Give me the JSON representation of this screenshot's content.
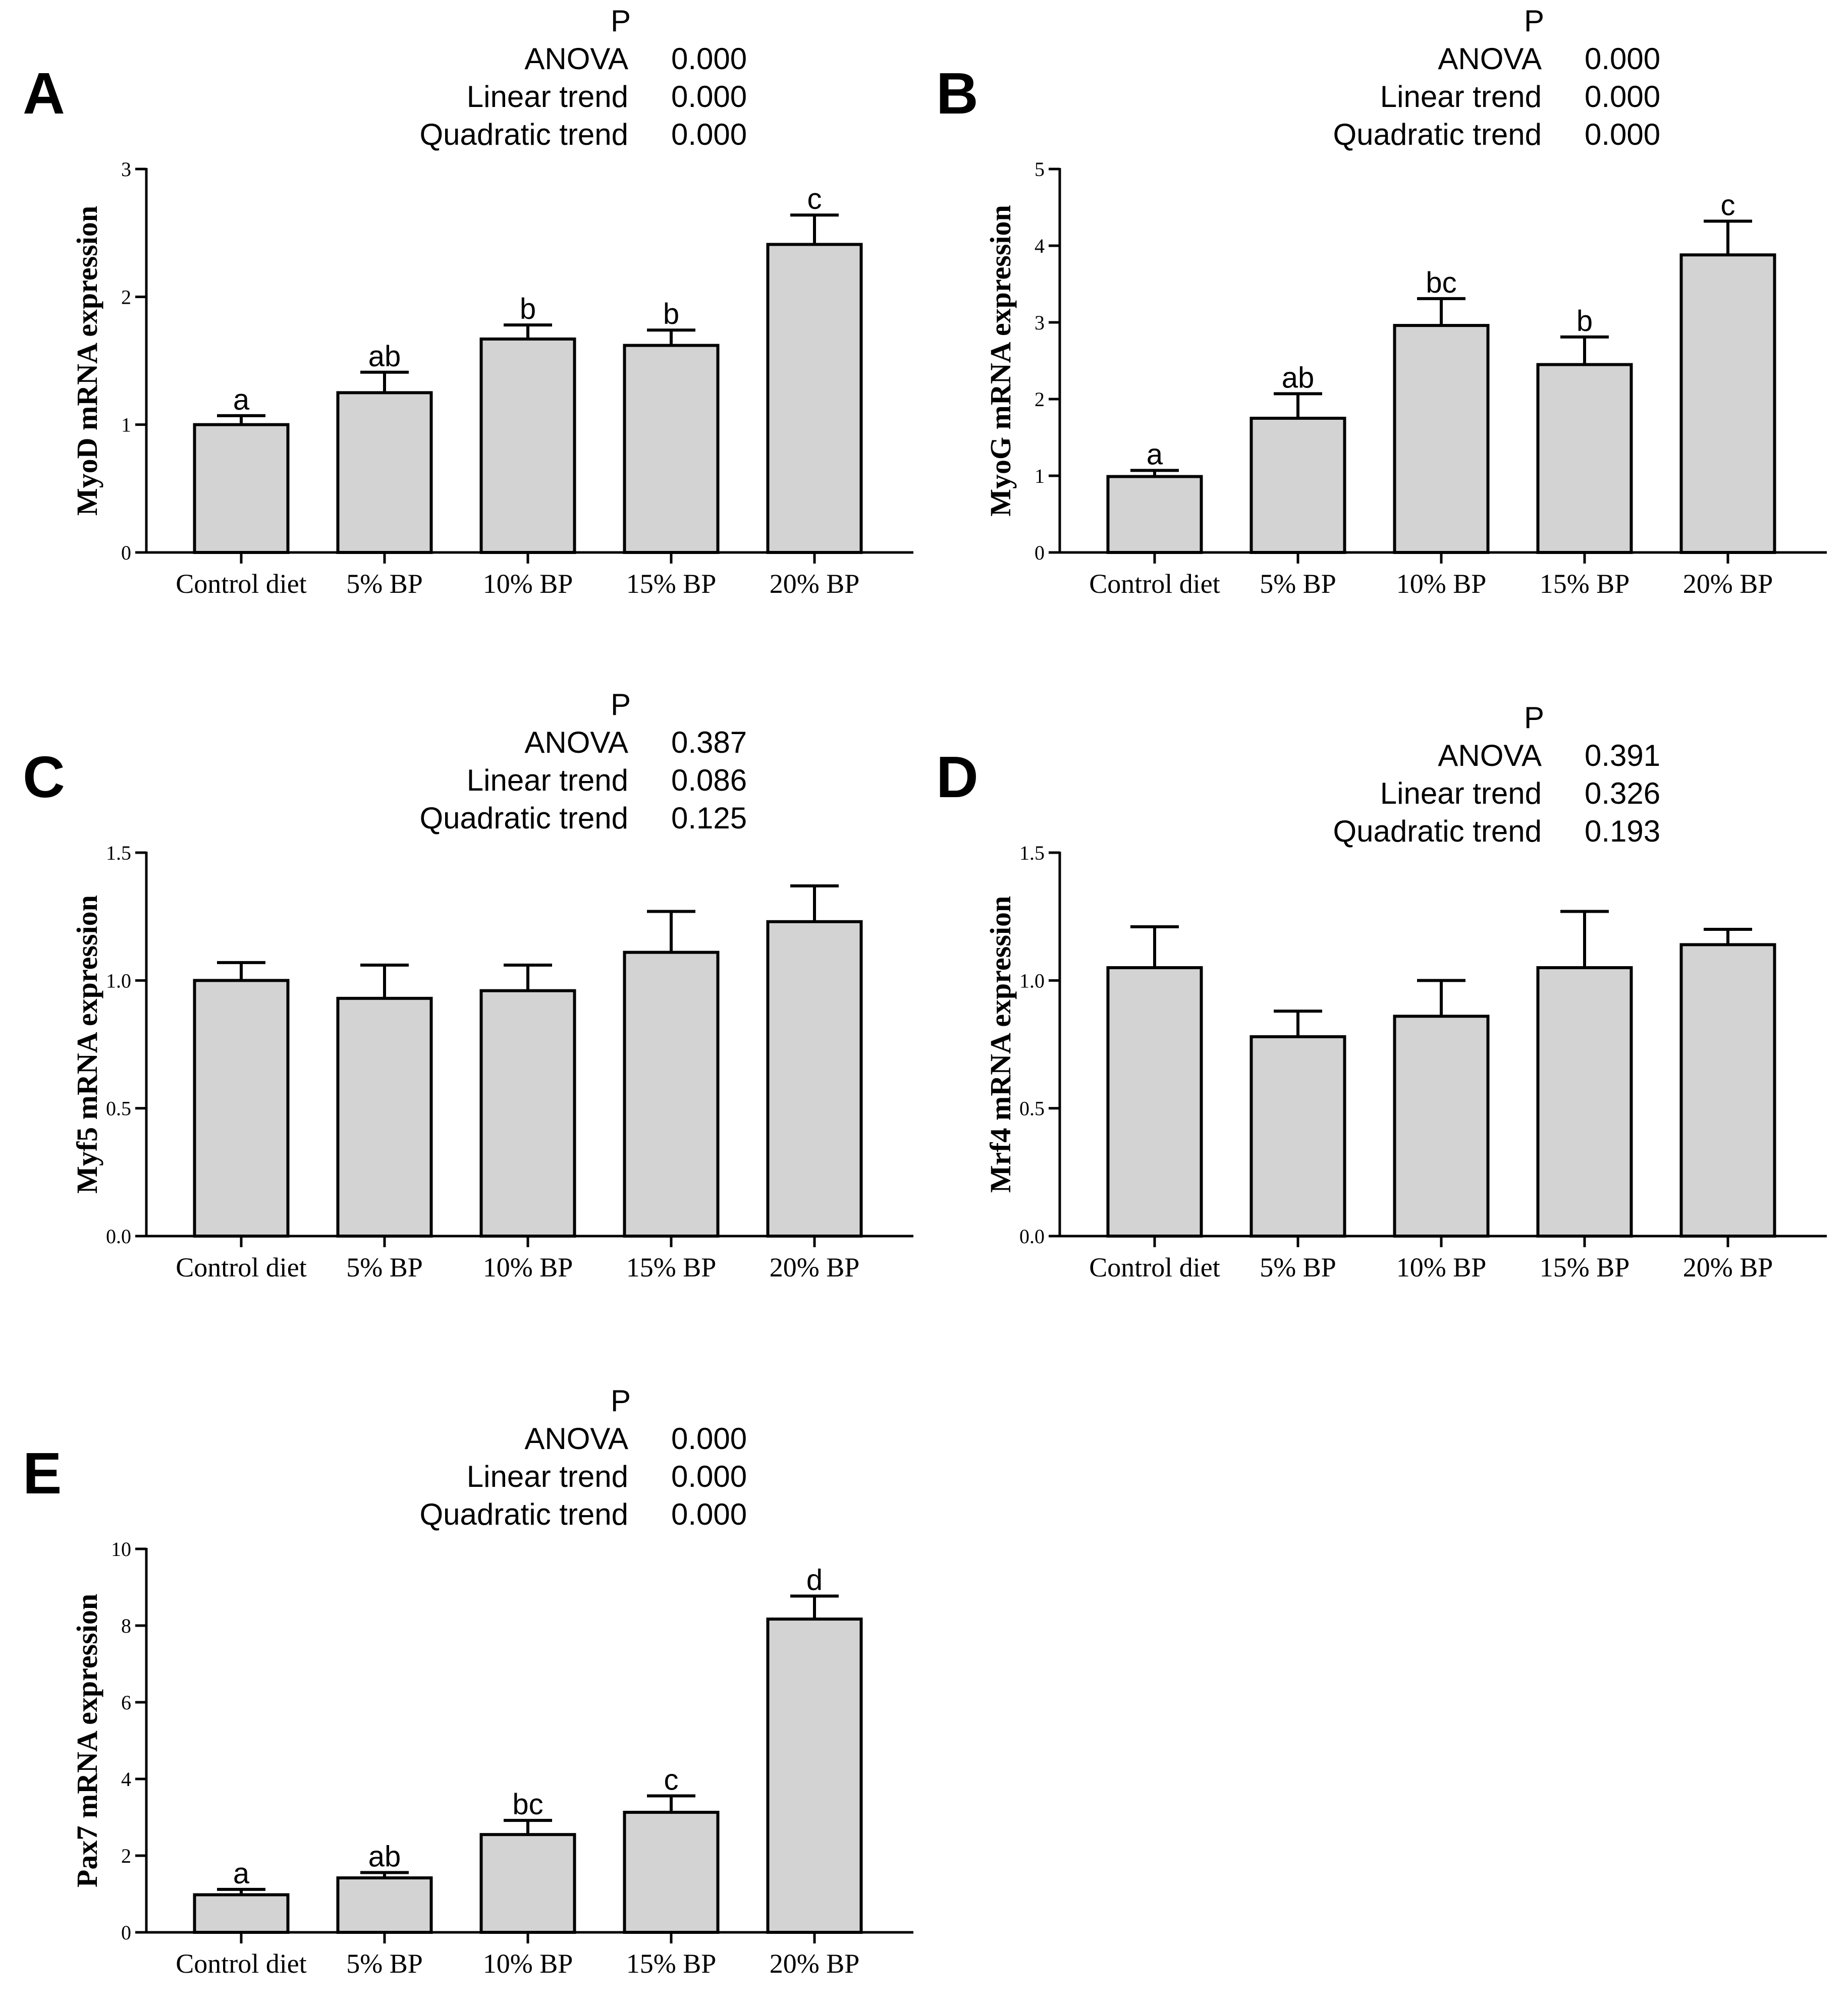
{
  "chart_data": [
    {
      "type": "bar",
      "panel": "A",
      "ylabel": "MyoD mRNA expression",
      "categories": [
        "Control diet",
        "5% BP",
        "10% BP",
        "15% BP",
        "20% BP"
      ],
      "values": [
        1.0,
        1.25,
        1.67,
        1.62,
        2.41
      ],
      "errors": [
        0.07,
        0.16,
        0.11,
        0.12,
        0.23
      ],
      "letters": [
        "a",
        "ab",
        "b",
        "b",
        "c"
      ],
      "ylim": [
        0,
        3
      ],
      "yticks": [
        "0",
        "1",
        "2",
        "3"
      ],
      "stats": {
        "header": "P",
        "rows": [
          {
            "label": "ANOVA",
            "value": "0.000"
          },
          {
            "label": "Linear trend",
            "value": "0.000"
          },
          {
            "label": "Quadratic trend",
            "value": "0.000"
          }
        ]
      }
    },
    {
      "type": "bar",
      "panel": "B",
      "ylabel": "MyoG mRNA expression",
      "categories": [
        "Control diet",
        "5% BP",
        "10% BP",
        "15% BP",
        "20% BP"
      ],
      "values": [
        0.99,
        1.75,
        2.96,
        2.45,
        3.88
      ],
      "errors": [
        0.08,
        0.32,
        0.35,
        0.36,
        0.44
      ],
      "letters": [
        "a",
        "ab",
        "bc",
        "b",
        "c"
      ],
      "ylim": [
        0,
        5
      ],
      "yticks": [
        "0",
        "1",
        "2",
        "3",
        "4",
        "5"
      ],
      "stats": {
        "header": "P",
        "rows": [
          {
            "label": "ANOVA",
            "value": "0.000"
          },
          {
            "label": "Linear trend",
            "value": "0.000"
          },
          {
            "label": "Quadratic trend",
            "value": "0.000"
          }
        ]
      }
    },
    {
      "type": "bar",
      "panel": "C",
      "ylabel": "Myf5 mRNA expression",
      "categories": [
        "Control diet",
        "5% BP",
        "10% BP",
        "15% BP",
        "20% BP"
      ],
      "values": [
        1.0,
        0.93,
        0.96,
        1.11,
        1.23
      ],
      "errors": [
        0.07,
        0.13,
        0.1,
        0.16,
        0.14
      ],
      "letters": [
        "",
        "",
        "",
        "",
        ""
      ],
      "ylim": [
        0,
        1.5
      ],
      "yticks": [
        "0.0",
        "0.5",
        "1.0",
        "1.5"
      ],
      "stats": {
        "header": "P",
        "rows": [
          {
            "label": "ANOVA",
            "value": "0.387"
          },
          {
            "label": "Linear trend",
            "value": "0.086"
          },
          {
            "label": "Quadratic trend",
            "value": "0.125"
          }
        ]
      }
    },
    {
      "type": "bar",
      "panel": "D",
      "ylabel": "Mrf4 mRNA expression",
      "categories": [
        "Control diet",
        "5% BP",
        "10% BP",
        "15% BP",
        "20% BP"
      ],
      "values": [
        1.05,
        0.78,
        0.86,
        1.05,
        1.14
      ],
      "errors": [
        0.16,
        0.1,
        0.14,
        0.22,
        0.06
      ],
      "letters": [
        "",
        "",
        "",
        "",
        ""
      ],
      "ylim": [
        0,
        1.5
      ],
      "yticks": [
        "0.0",
        "0.5",
        "1.0",
        "1.5"
      ],
      "stats": {
        "header": "P",
        "rows": [
          {
            "label": "ANOVA",
            "value": "0.391"
          },
          {
            "label": "Linear trend",
            "value": "0.326"
          },
          {
            "label": "Quadratic trend",
            "value": "0.193"
          }
        ]
      }
    },
    {
      "type": "bar",
      "panel": "E",
      "ylabel": "Pax7 mRNA expression",
      "categories": [
        "Control diet",
        "5% BP",
        "10% BP",
        "15% BP",
        "20% BP"
      ],
      "values": [
        0.98,
        1.42,
        2.55,
        3.13,
        8.17
      ],
      "errors": [
        0.14,
        0.14,
        0.37,
        0.43,
        0.6
      ],
      "letters": [
        "a",
        "ab",
        "bc",
        "c",
        "d"
      ],
      "ylim": [
        0,
        10
      ],
      "yticks": [
        "0",
        "2",
        "4",
        "6",
        "8",
        "10"
      ],
      "stats": {
        "header": "P",
        "rows": [
          {
            "label": "ANOVA",
            "value": "0.000"
          },
          {
            "label": "Linear trend",
            "value": "0.000"
          },
          {
            "label": "Quadratic trend",
            "value": "0.000"
          }
        ]
      }
    }
  ]
}
